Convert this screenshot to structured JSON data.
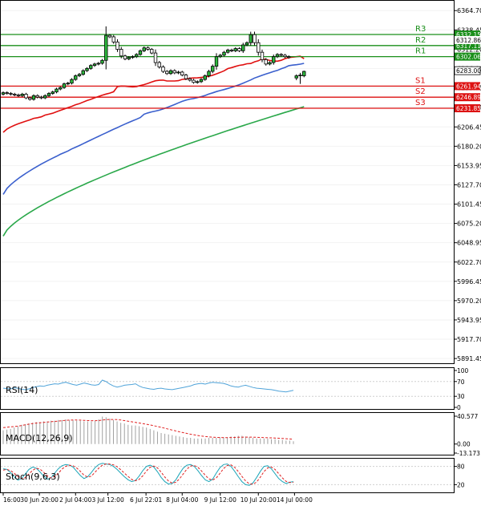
{
  "chart_data": {
    "type": "candlestick",
    "price_axis": {
      "ticks": [
        6364.7,
        6338.45,
        6312.2,
        6286.0,
        6259.75,
        6233.5,
        6206.45,
        6180.2,
        6153.95,
        6127.7,
        6101.45,
        6075.2,
        6048.95,
        6022.7,
        5996.45,
        5970.2,
        5943.95,
        5917.7,
        5891.45
      ],
      "labels": [
        "6364.70",
        "6338.45",
        "6312.20",
        "6286.00",
        "6259.75",
        "6233.50",
        "6206.45",
        "6180.20",
        "6153.95",
        "6127.70",
        "6101.45",
        "6075.20",
        "6048.95",
        "6022.70",
        "5996.45",
        "5970.20",
        "5943.95",
        "5917.70",
        "5891.45"
      ],
      "range": [
        5885,
        6378
      ]
    },
    "time_axis": {
      "labels": [
        "16:00",
        "30 Jun 20:00",
        "2 Jul 04:00",
        "3 Jul 12:00",
        "6 Jul 22:01",
        "8 Jul 04:00",
        "9 Jul 12:00",
        "10 Jul 20:00",
        "14 Jul 00:00"
      ],
      "positions": [
        0,
        9.5,
        19,
        27.5,
        37.5,
        47,
        57,
        67,
        76.5
      ],
      "bar_count": 80
    },
    "levels": [
      {
        "name": "R3",
        "value": 6332.15,
        "label": "6332.15",
        "color": "#1a8f1a"
      },
      {
        "name": "R2",
        "value": 6317.11,
        "label": "6317.11",
        "color": "#1a8f1a"
      },
      {
        "name": "R1",
        "value": 6302.06,
        "label": "6302.06",
        "color": "#1a8f1a"
      },
      {
        "name": "S1",
        "value": 6261.94,
        "label": "6261.94",
        "color": "#dd1111"
      },
      {
        "name": "S2",
        "value": 6246.89,
        "label": "6246.89",
        "color": "#dd1111"
      },
      {
        "name": "S3",
        "value": 6231.85,
        "label": "6231.85",
        "color": "#dd1111"
      }
    ],
    "current_price": {
      "value": 6283.0,
      "label": "6283.00"
    },
    "overlap_label": "6312.86",
    "candles_anchor_close": [
      6253,
      6252,
      6251,
      6250,
      6249,
      6251,
      6246,
      6244,
      6249,
      6247,
      6246,
      6249,
      6252,
      6254,
      6258,
      6260,
      6265,
      6266,
      6271,
      6276,
      6278,
      6283,
      6286,
      6290,
      6292,
      6293,
      6297,
      6331,
      6329,
      6322,
      6312,
      6303,
      6299,
      6301,
      6302,
      6305,
      6310,
      6314,
      6312,
      6307,
      6294,
      6288,
      6282,
      6279,
      6283,
      6280,
      6281,
      6277,
      6272,
      6270,
      6267,
      6268,
      6271,
      6276,
      6282,
      6289,
      6302,
      6304,
      6308,
      6311,
      6310,
      6313,
      6310,
      6318,
      6321,
      6332,
      6321,
      6308,
      6298,
      6292,
      6294,
      6302,
      6305,
      6304,
      6302,
      6301
    ],
    "last_candles": [
      {
        "o": 6273,
        "h": 6278,
        "l": 6270,
        "c": 6276
      },
      {
        "o": 6276,
        "h": 6280,
        "l": 6265,
        "c": 6277
      },
      {
        "o": 6276,
        "h": 6283,
        "l": 6274,
        "c": 6282
      }
    ],
    "ma_fast": {
      "color": "#e01010",
      "start": 6188,
      "end": 6304
    },
    "ma_mid": {
      "color": "#3a5fcd",
      "start": 6103,
      "end": 6293
    },
    "ma_slow": {
      "color": "#2aa84a",
      "start": 6058,
      "end": 6234
    },
    "rsi": {
      "label": "RSI(14)",
      "ticks": [
        "100",
        "70",
        "30",
        "0"
      ],
      "tick_values": [
        100,
        70,
        30,
        0
      ],
      "values": [
        52,
        51,
        50,
        53,
        52,
        49,
        48,
        50,
        54,
        56,
        58,
        57,
        60,
        62,
        64,
        63,
        66,
        68,
        65,
        62,
        60,
        63,
        66,
        64,
        61,
        60,
        62,
        74,
        70,
        63,
        58,
        55,
        57,
        60,
        61,
        62,
        64,
        58,
        54,
        52,
        50,
        49,
        51,
        52,
        50,
        49,
        48,
        50,
        52,
        54,
        56,
        58,
        62,
        64,
        65,
        63,
        66,
        68,
        67,
        66,
        65,
        62,
        58,
        56,
        55,
        58,
        60,
        57,
        54,
        52,
        51,
        50,
        49,
        48,
        46,
        44,
        43,
        42,
        44,
        46
      ]
    },
    "macd": {
      "label": "MACD(12,26,9)",
      "ticks": [
        "40.577",
        "0.00",
        "-13.173"
      ],
      "tick_values": [
        40.577,
        0,
        -13.173
      ],
      "hist": [
        20,
        21,
        22,
        24,
        26,
        28,
        29,
        30,
        31,
        32,
        32,
        33,
        33,
        34,
        34,
        35,
        35,
        36,
        35,
        35,
        34,
        34,
        33,
        33,
        33,
        34,
        36,
        40,
        39,
        37,
        35,
        33,
        31,
        30,
        28,
        27,
        27,
        26,
        25,
        24,
        22,
        20,
        18,
        16,
        15,
        14,
        13,
        12,
        11,
        10,
        9,
        9,
        8,
        8,
        8,
        8,
        9,
        9,
        9,
        10,
        10,
        10,
        11,
        11,
        12,
        12,
        11,
        10,
        9,
        8,
        8,
        8,
        8,
        7,
        7,
        6,
        6,
        5,
        5,
        4
      ],
      "signal": [
        24,
        24.5,
        25,
        25.5,
        26,
        27,
        28,
        29,
        30,
        30.5,
        31,
        31.5,
        32,
        32.5,
        33,
        33.5,
        34,
        34.5,
        34.8,
        35,
        35,
        34.8,
        34.5,
        34.2,
        34,
        34,
        34.2,
        35,
        35.5,
        35.8,
        35.8,
        35.5,
        35,
        34.2,
        33.3,
        32.4,
        31.5,
        30.6,
        29.7,
        28.8,
        27.8,
        26.7,
        25.5,
        24.3,
        23,
        21.7,
        20.4,
        19.1,
        17.8,
        16.6,
        15.4,
        14.3,
        13.3,
        12.4,
        11.6,
        10.9,
        10.4,
        10,
        9.7,
        9.5,
        9.4,
        9.4,
        9.5,
        9.6,
        9.8,
        10,
        10.1,
        10.1,
        10,
        9.8,
        9.6,
        9.4,
        9.2,
        9,
        8.7,
        8.4,
        8.1,
        7.8,
        7.4,
        7
      ]
    },
    "stoch": {
      "label": "Stoch(9,6,3)",
      "ticks": [
        "80",
        "20"
      ],
      "tick_values": [
        80,
        20
      ],
      "k": [
        72,
        70,
        60,
        45,
        35,
        40,
        55,
        70,
        78,
        74,
        62,
        48,
        38,
        42,
        58,
        72,
        82,
        86,
        84,
        78,
        64,
        50,
        40,
        46,
        60,
        76,
        86,
        90,
        88,
        86,
        80,
        70,
        58,
        46,
        36,
        30,
        34,
        48,
        66,
        80,
        84,
        78,
        62,
        44,
        30,
        22,
        24,
        36,
        56,
        74,
        84,
        86,
        80,
        66,
        50,
        36,
        30,
        38,
        58,
        76,
        86,
        88,
        80,
        64,
        46,
        30,
        20,
        18,
        26,
        44,
        64,
        80,
        82,
        72,
        56,
        40,
        30,
        24,
        28,
        30
      ],
      "d": [
        68,
        70,
        66,
        58,
        46,
        40,
        43,
        55,
        67,
        74,
        71,
        61,
        49,
        42,
        46,
        57,
        71,
        80,
        84,
        82,
        75,
        64,
        51,
        45,
        48,
        61,
        74,
        84,
        88,
        88,
        85,
        79,
        69,
        58,
        47,
        37,
        33,
        37,
        49,
        65,
        77,
        81,
        75,
        61,
        45,
        32,
        25,
        28,
        39,
        55,
        71,
        81,
        83,
        77,
        65,
        51,
        39,
        35,
        42,
        57,
        73,
        83,
        85,
        77,
        63,
        47,
        32,
        23,
        21,
        29,
        45,
        63,
        75,
        78,
        70,
        56,
        42,
        31,
        27,
        28
      ]
    }
  }
}
